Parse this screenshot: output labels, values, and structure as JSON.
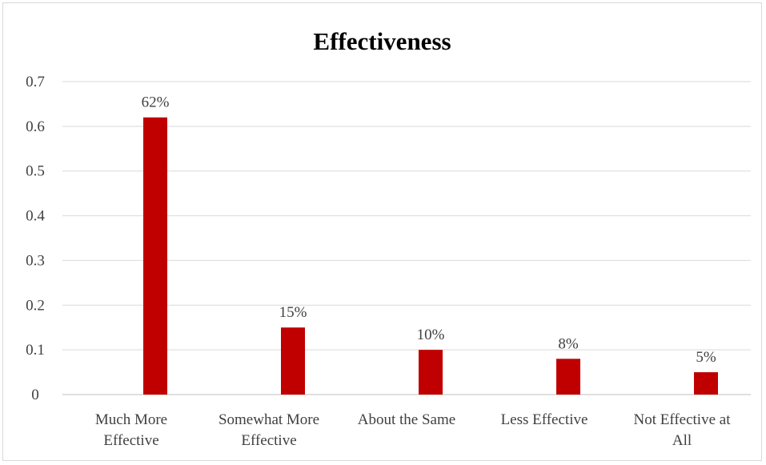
{
  "chart_data": {
    "type": "bar",
    "title": "Effectiveness",
    "categories": [
      [
        "Much More",
        "Effective"
      ],
      [
        "Somewhat More",
        "Effective"
      ],
      [
        "About the Same"
      ],
      [
        "Less Effective"
      ],
      [
        "Not Effective at",
        "All"
      ]
    ],
    "values": [
      0.62,
      0.15,
      0.1,
      0.08,
      0.05
    ],
    "data_labels": [
      "62%",
      "15%",
      "10%",
      "8%",
      "5%"
    ],
    "ylim": [
      0,
      0.7
    ],
    "yticks": [
      "0",
      "0.1",
      "0.2",
      "0.3",
      "0.4",
      "0.5",
      "0.6",
      "0.7"
    ],
    "xlabel": "",
    "ylabel": "",
    "grid": true,
    "legend": "none",
    "bar_color": "#C00000",
    "grid_color": "#d9d9d9",
    "text_color": "#404040"
  }
}
